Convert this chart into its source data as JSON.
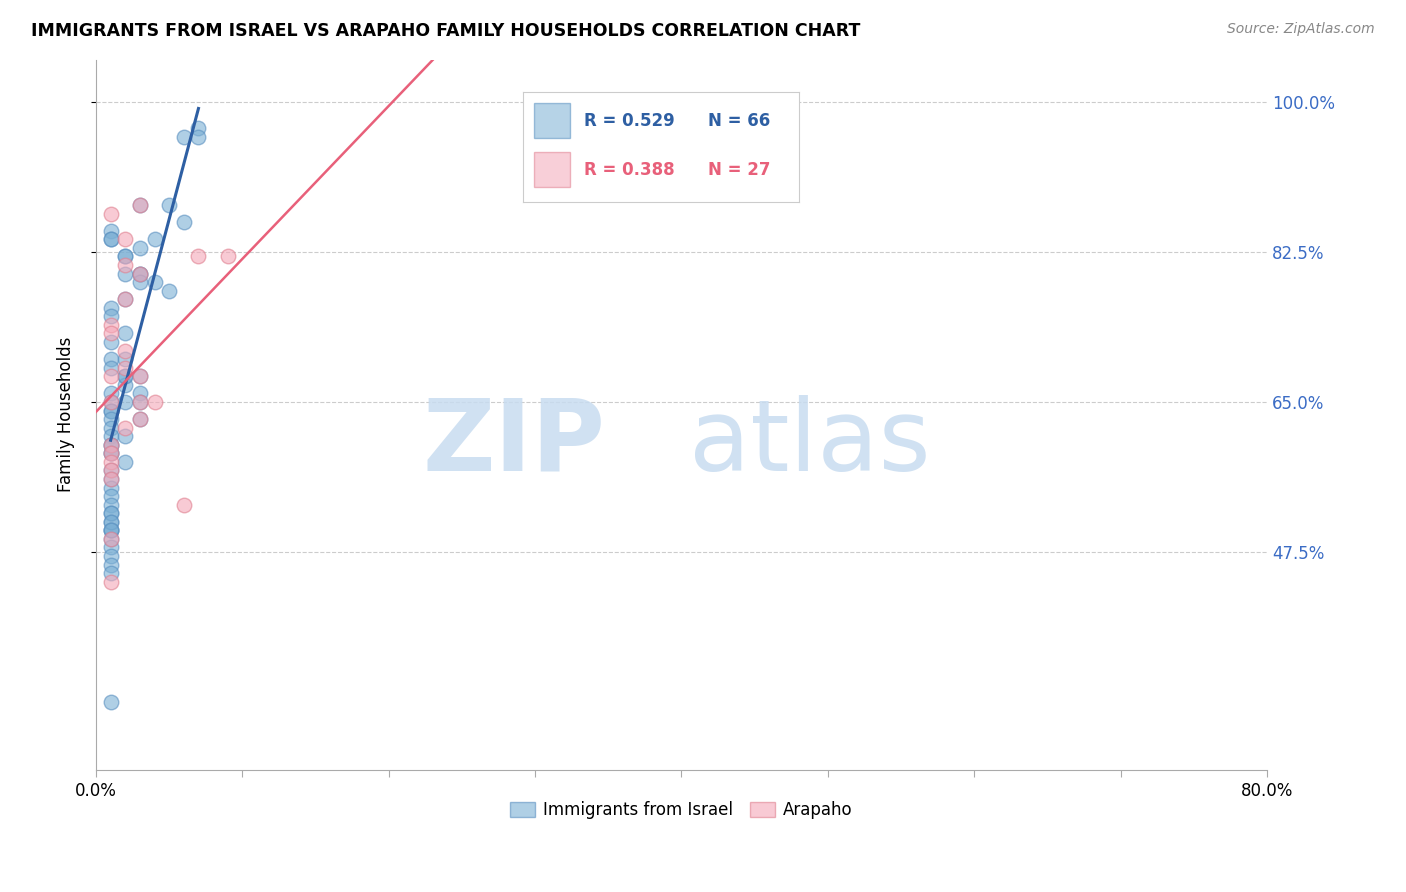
{
  "title": "IMMIGRANTS FROM ISRAEL VS ARAPAHO FAMILY HOUSEHOLDS CORRELATION CHART",
  "source": "Source: ZipAtlas.com",
  "ylabel": "Family Households",
  "ytick_labels": [
    "100.0%",
    "82.5%",
    "65.0%",
    "47.5%"
  ],
  "ytick_values": [
    1.0,
    0.825,
    0.65,
    0.475
  ],
  "legend1_r": "R = 0.529",
  "legend1_n": "N = 66",
  "legend2_r": "R = 0.388",
  "legend2_n": "N = 27",
  "blue_scatter_color": "#7BAFD4",
  "pink_scatter_color": "#F4A8B8",
  "blue_line_color": "#2E5FA3",
  "pink_line_color": "#E8607A",
  "blue_edge_color": "#5A90C0",
  "pink_edge_color": "#E08090",
  "xmin": 0.0,
  "xmax": 0.8,
  "ymin": 0.22,
  "ymax": 1.05,
  "blue_points_x": [
    0.02,
    0.05,
    0.03,
    0.06,
    0.04,
    0.03,
    0.02,
    0.01,
    0.01,
    0.03,
    0.02,
    0.04,
    0.03,
    0.05,
    0.03,
    0.02,
    0.01,
    0.01,
    0.02,
    0.01,
    0.01,
    0.01,
    0.02,
    0.02,
    0.03,
    0.02,
    0.03,
    0.02,
    0.01,
    0.01,
    0.01,
    0.02,
    0.01,
    0.01,
    0.01,
    0.01,
    0.02,
    0.01,
    0.01,
    0.01,
    0.01,
    0.02,
    0.01,
    0.01,
    0.01,
    0.01,
    0.01,
    0.01,
    0.01,
    0.01,
    0.01,
    0.01,
    0.01,
    0.01,
    0.01,
    0.01,
    0.01,
    0.01,
    0.01,
    0.01,
    0.07,
    0.07,
    0.06,
    0.01,
    0.03,
    0.03
  ],
  "blue_points_y": [
    0.82,
    0.88,
    0.88,
    0.86,
    0.84,
    0.83,
    0.82,
    0.85,
    0.84,
    0.8,
    0.8,
    0.79,
    0.8,
    0.78,
    0.79,
    0.77,
    0.76,
    0.75,
    0.73,
    0.72,
    0.7,
    0.69,
    0.7,
    0.68,
    0.68,
    0.67,
    0.66,
    0.68,
    0.66,
    0.65,
    0.64,
    0.65,
    0.64,
    0.63,
    0.62,
    0.61,
    0.61,
    0.6,
    0.59,
    0.6,
    0.59,
    0.58,
    0.57,
    0.56,
    0.55,
    0.54,
    0.53,
    0.52,
    0.51,
    0.5,
    0.5,
    0.49,
    0.48,
    0.47,
    0.46,
    0.45,
    0.52,
    0.51,
    0.5,
    0.3,
    0.97,
    0.96,
    0.96,
    0.84,
    0.65,
    0.63
  ],
  "pink_points_x": [
    0.03,
    0.01,
    0.02,
    0.02,
    0.03,
    0.02,
    0.01,
    0.01,
    0.02,
    0.02,
    0.01,
    0.01,
    0.04,
    0.03,
    0.02,
    0.01,
    0.01,
    0.01,
    0.01,
    0.01,
    0.01,
    0.01,
    0.03,
    0.03,
    0.06,
    0.07,
    0.09
  ],
  "pink_points_y": [
    0.88,
    0.87,
    0.84,
    0.81,
    0.8,
    0.77,
    0.74,
    0.73,
    0.71,
    0.69,
    0.68,
    0.65,
    0.65,
    0.63,
    0.62,
    0.6,
    0.59,
    0.58,
    0.57,
    0.56,
    0.49,
    0.44,
    0.68,
    0.65,
    0.53,
    0.82,
    0.82
  ],
  "xtick_positions": [
    0.0,
    0.1,
    0.2,
    0.3,
    0.4,
    0.5,
    0.6,
    0.7,
    0.8
  ],
  "n_xticks": 9
}
